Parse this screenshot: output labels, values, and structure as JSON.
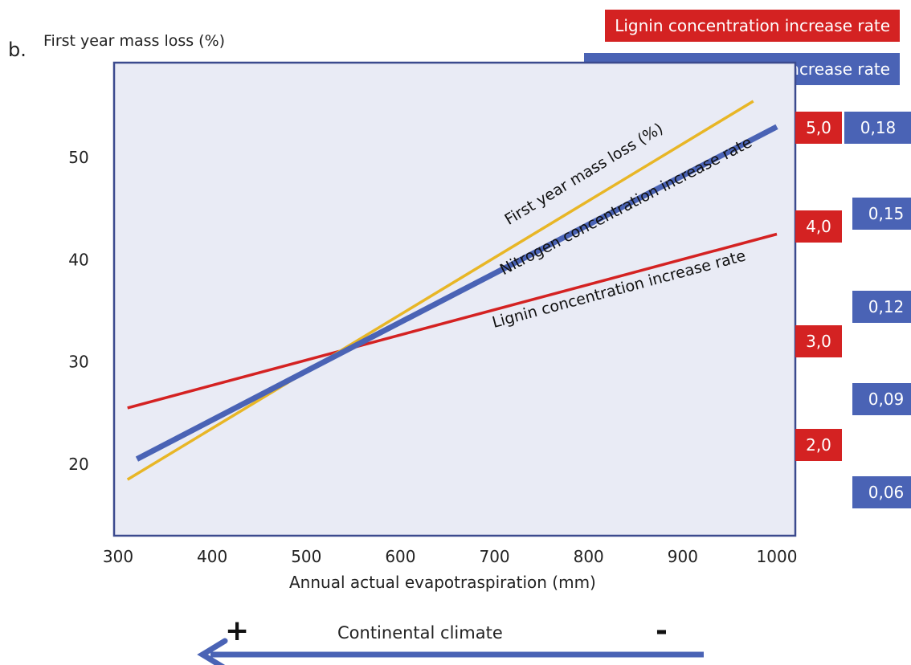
{
  "panel_label": "b.",
  "colors": {
    "lignin": "#d42222",
    "nitrogen": "#4a63b5",
    "mass_loss": "#e8b626",
    "plot_bg": "#e9ebf5",
    "frame": "#3b4a8e"
  },
  "chart_data": {
    "type": "line",
    "y_title": "First year mass loss (%)",
    "xlabel": "Annual actual evapotraspiration (mm)",
    "xlim": [
      300,
      1000
    ],
    "ylim": [
      14,
      59
    ],
    "x_ticks": [
      "300",
      "400",
      "500",
      "600",
      "700",
      "800",
      "900",
      "1000"
    ],
    "y_ticks": [
      "20",
      "30",
      "40",
      "50"
    ],
    "legend": [
      "Lignin concentration increase rate",
      "Nitrogen concentration increase rate"
    ],
    "series": [
      {
        "name": "First year mass loss (%)",
        "x": [
          310,
          975
        ],
        "y": [
          18.5,
          55.5
        ]
      },
      {
        "name": "Nitrogen concentration increase rate",
        "x": [
          320,
          1000
        ],
        "y": [
          20.5,
          53
        ]
      },
      {
        "name": "Lignin concentration increase rate",
        "x": [
          310,
          1000
        ],
        "y": [
          25.5,
          42.5
        ]
      }
    ],
    "right_axis_lignin": {
      "ticks": [
        "5,0",
        "4,0",
        "3,0",
        "2,0"
      ]
    },
    "right_axis_nitrogen": {
      "ticks": [
        "0,18",
        "0,15",
        "0,12",
        "0,09",
        "0,06"
      ]
    }
  },
  "climate_arrow": {
    "label": "Continental climate",
    "plus": "+",
    "minus": "-"
  }
}
